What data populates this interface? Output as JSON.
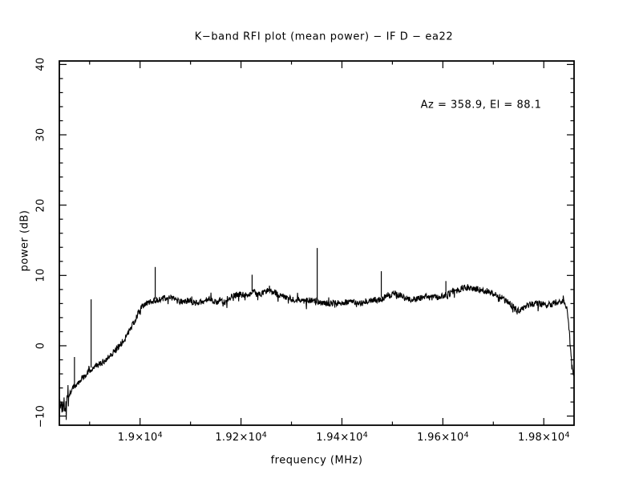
{
  "page": {
    "background": "#ffffff",
    "foreground": "#000000"
  },
  "chart_data": {
    "type": "line",
    "title": "K−band RFI plot (mean power) − IF D − ea22",
    "annotation": "Az = 358.9, El = 88.1",
    "xlabel": "frequency (MHz)",
    "ylabel": "power (dB)",
    "xlim": [
      18840,
      19860
    ],
    "ylim": [
      -11.3,
      40.5
    ],
    "grid": false,
    "line_color": "#000000",
    "x_ticks": [
      {
        "value": 19000,
        "mantissa": "1.9",
        "multiplier": "×10",
        "exponent": "4"
      },
      {
        "value": 19200,
        "mantissa": "1.92",
        "multiplier": "×10",
        "exponent": "4"
      },
      {
        "value": 19400,
        "mantissa": "1.94",
        "multiplier": "×10",
        "exponent": "4"
      },
      {
        "value": 19600,
        "mantissa": "1.96",
        "multiplier": "×10",
        "exponent": "4"
      },
      {
        "value": 19800,
        "mantissa": "1.98",
        "multiplier": "×10",
        "exponent": "4"
      }
    ],
    "x_minor_step": 100,
    "y_ticks": [
      {
        "value": -10,
        "label": "−10"
      },
      {
        "value": 0,
        "label": "0"
      },
      {
        "value": 10,
        "label": "10"
      },
      {
        "value": 20,
        "label": "20"
      },
      {
        "value": 30,
        "label": "30"
      },
      {
        "value": 40,
        "label": "40"
      }
    ],
    "y_minor_step": 2,
    "envelope": [
      [
        18840,
        -8.8
      ],
      [
        18848,
        -8.3
      ],
      [
        18856,
        -7.3
      ],
      [
        18864,
        -6.3
      ],
      [
        18872,
        -5.6
      ],
      [
        18880,
        -5.0
      ],
      [
        18890,
        -4.2
      ],
      [
        18903,
        -3.3
      ],
      [
        18912,
        -2.9
      ],
      [
        18925,
        -2.4
      ],
      [
        18940,
        -1.4
      ],
      [
        18955,
        -0.3
      ],
      [
        18970,
        1.0
      ],
      [
        18984,
        2.8
      ],
      [
        18992,
        4.0
      ],
      [
        19000,
        5.2
      ],
      [
        19010,
        6.0
      ],
      [
        19020,
        6.3
      ],
      [
        19032,
        6.5
      ],
      [
        19045,
        6.7
      ],
      [
        19055,
        6.9
      ],
      [
        19065,
        6.7
      ],
      [
        19075,
        6.4
      ],
      [
        19085,
        6.2
      ],
      [
        19095,
        6.4
      ],
      [
        19105,
        6.2
      ],
      [
        19115,
        6.0
      ],
      [
        19125,
        6.3
      ],
      [
        19135,
        6.6
      ],
      [
        19145,
        6.4
      ],
      [
        19155,
        6.2
      ],
      [
        19165,
        6.3
      ],
      [
        19175,
        6.7
      ],
      [
        19185,
        7.1
      ],
      [
        19195,
        7.3
      ],
      [
        19205,
        7.2
      ],
      [
        19215,
        7.4
      ],
      [
        19225,
        7.6
      ],
      [
        19235,
        7.3
      ],
      [
        19245,
        7.5
      ],
      [
        19255,
        7.9
      ],
      [
        19265,
        7.7
      ],
      [
        19275,
        7.3
      ],
      [
        19285,
        7.0
      ],
      [
        19295,
        6.7
      ],
      [
        19305,
        6.6
      ],
      [
        19315,
        6.6
      ],
      [
        19325,
        6.4
      ],
      [
        19335,
        6.5
      ],
      [
        19345,
        6.4
      ],
      [
        19355,
        6.3
      ],
      [
        19365,
        6.1
      ],
      [
        19375,
        6.0
      ],
      [
        19385,
        6.1
      ],
      [
        19395,
        6.0
      ],
      [
        19405,
        6.1
      ],
      [
        19415,
        6.3
      ],
      [
        19425,
        6.2
      ],
      [
        19435,
        6.1
      ],
      [
        19445,
        6.3
      ],
      [
        19455,
        6.4
      ],
      [
        19465,
        6.5
      ],
      [
        19475,
        6.6
      ],
      [
        19485,
        6.9
      ],
      [
        19495,
        7.2
      ],
      [
        19505,
        7.5
      ],
      [
        19515,
        7.2
      ],
      [
        19525,
        6.8
      ],
      [
        19535,
        6.6
      ],
      [
        19545,
        6.6
      ],
      [
        19555,
        6.8
      ],
      [
        19565,
        7.0
      ],
      [
        19575,
        6.8
      ],
      [
        19585,
        6.9
      ],
      [
        19595,
        7.0
      ],
      [
        19605,
        7.2
      ],
      [
        19615,
        7.5
      ],
      [
        19625,
        7.8
      ],
      [
        19635,
        8.1
      ],
      [
        19645,
        8.2
      ],
      [
        19655,
        8.3
      ],
      [
        19665,
        8.2
      ],
      [
        19675,
        8.0
      ],
      [
        19685,
        7.8
      ],
      [
        19695,
        7.6
      ],
      [
        19705,
        7.3
      ],
      [
        19715,
        6.9
      ],
      [
        19725,
        6.4
      ],
      [
        19735,
        5.8
      ],
      [
        19745,
        5.2
      ],
      [
        19752,
        5.0
      ],
      [
        19760,
        5.5
      ],
      [
        19775,
        5.9
      ],
      [
        19790,
        6.0
      ],
      [
        19805,
        5.8
      ],
      [
        19815,
        5.9
      ],
      [
        19825,
        6.2
      ],
      [
        19835,
        6.4
      ],
      [
        19842,
        6.3
      ],
      [
        19847,
        5.0
      ],
      [
        19851,
        1.5
      ],
      [
        19854,
        -1.5
      ],
      [
        19857,
        -3.5
      ],
      [
        19860,
        -4.2
      ]
    ],
    "spikes": [
      {
        "freq": 18870,
        "top": -1.6
      },
      {
        "freq": 18903,
        "top": 6.6
      },
      {
        "freq": 19030,
        "top": 11.2
      },
      {
        "freq": 19222,
        "top": 10.1
      },
      {
        "freq": 19351,
        "top": 13.9
      },
      {
        "freq": 19478,
        "top": 10.6
      },
      {
        "freq": 19606,
        "top": 9.2
      }
    ],
    "noise_amp": 0.45,
    "edge_noise_amp": 1.7,
    "edge_noise_below": 18858,
    "points": 1450,
    "seed": 1337
  }
}
